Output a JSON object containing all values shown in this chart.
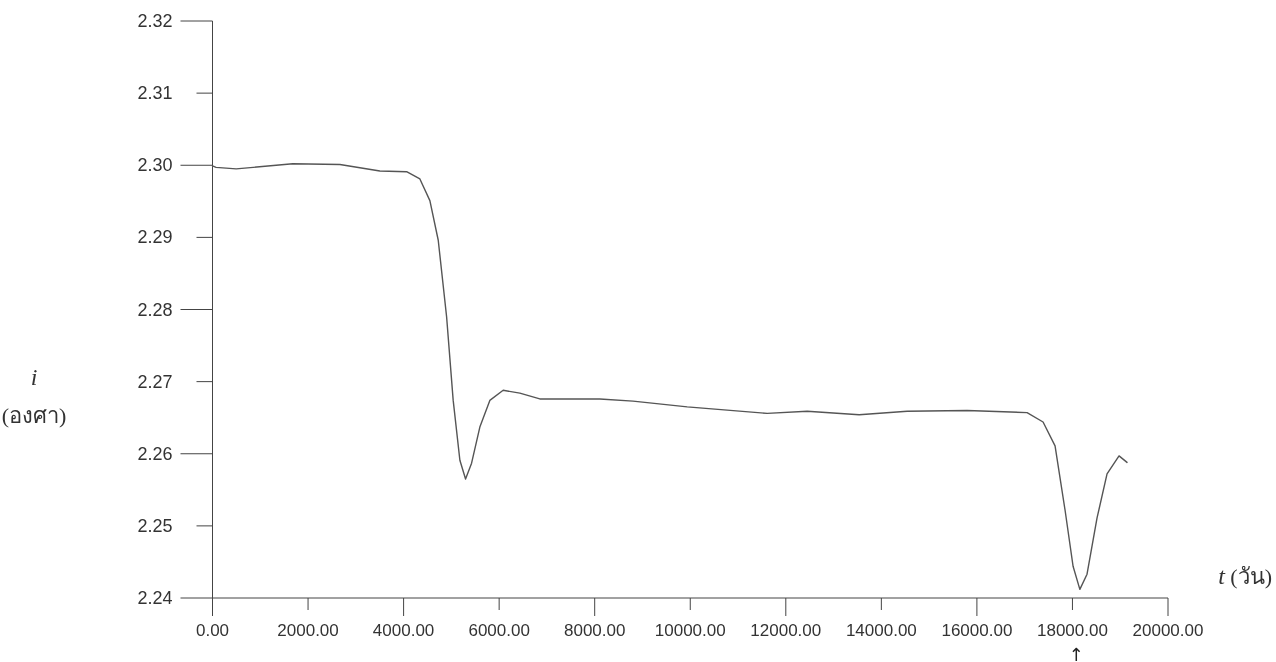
{
  "chart_data": {
    "type": "line",
    "xlabel": "t (วัน)",
    "ylabel": "i (องศา)",
    "xlim": [
      0,
      20000
    ],
    "ylim": [
      2.24,
      2.32
    ],
    "xticks": [
      {
        "value": 0,
        "label": "0.00"
      },
      {
        "value": 2000,
        "label": "2000.00"
      },
      {
        "value": 4000,
        "label": "4000.00"
      },
      {
        "value": 6000,
        "label": "6000.00"
      },
      {
        "value": 8000,
        "label": "8000.00"
      },
      {
        "value": 10000,
        "label": "10000.00"
      },
      {
        "value": 12000,
        "label": "12000.00"
      },
      {
        "value": 14000,
        "label": "14000.00"
      },
      {
        "value": 16000,
        "label": "16000.00"
      },
      {
        "value": 18000,
        "label": "18000.00"
      },
      {
        "value": 20000,
        "label": "20000.00"
      }
    ],
    "yticks": [
      {
        "value": 2.24,
        "label": "2.24"
      },
      {
        "value": 2.25,
        "label": "2.25"
      },
      {
        "value": 2.26,
        "label": "2.26"
      },
      {
        "value": 2.27,
        "label": "2.27"
      },
      {
        "value": 2.28,
        "label": "2.28"
      },
      {
        "value": 2.29,
        "label": "2.29"
      },
      {
        "value": 2.3,
        "label": "2.30"
      },
      {
        "value": 2.31,
        "label": "2.31"
      },
      {
        "value": 2.32,
        "label": "2.32"
      }
    ],
    "annotations": [
      "↑"
    ],
    "series": [
      {
        "color": "#555555",
        "x": [
          0,
          74,
          496,
          1680,
          2667,
          3504,
          4063,
          4341,
          4550,
          4725,
          4900,
          5038,
          5178,
          5297,
          5423,
          5596,
          5805,
          6084,
          6433,
          6851,
          8107,
          8802,
          9937,
          11611,
          12448,
          13536,
          14540,
          15795,
          17050,
          17385,
          17636,
          17845,
          18013,
          18155,
          18305,
          18515,
          18724,
          18975,
          19142
        ],
        "values": [
          2.2999,
          2.2997,
          2.2995,
          2.3002,
          2.3001,
          2.2992,
          2.2991,
          2.2981,
          2.2951,
          2.2896,
          2.279,
          2.2674,
          2.2591,
          2.2565,
          2.2587,
          2.2637,
          2.2674,
          2.2688,
          2.2684,
          2.2676,
          2.2676,
          2.2673,
          2.2665,
          2.2656,
          2.2659,
          2.2654,
          2.2659,
          2.266,
          2.2657,
          2.2644,
          2.2611,
          2.2522,
          2.2444,
          2.2412,
          2.2433,
          2.2511,
          2.2572,
          2.2597,
          2.2588
        ]
      }
    ]
  }
}
